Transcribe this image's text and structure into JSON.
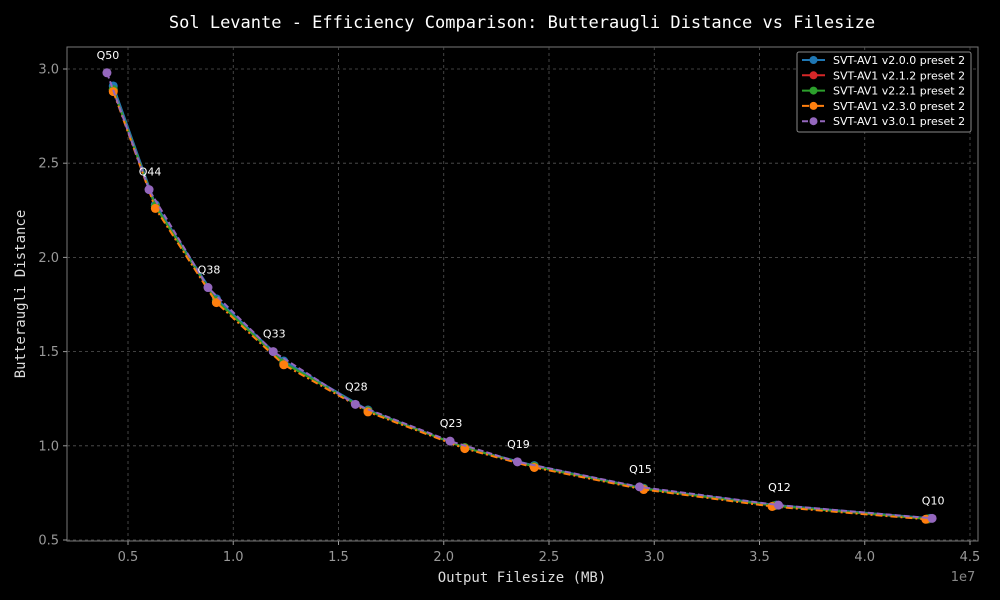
{
  "chart_data": {
    "type": "line",
    "title": "Sol Levante - Efficiency Comparison: Butteraugli Distance vs Filesize",
    "xlabel": "Output Filesize (MB)",
    "ylabel": "Butteraugli Distance",
    "x_offset_label": "1e7",
    "xlim": [
      0.0,
      4.5
    ],
    "ylim": [
      0.47,
      3.12
    ],
    "x_ticks": [
      0.5,
      1.0,
      1.5,
      2.0,
      2.5,
      3.0,
      3.5,
      4.0,
      4.5
    ],
    "x_tick_labels": [
      "0.5",
      "1.0",
      "1.5",
      "2.0",
      "2.5",
      "3.0",
      "3.5",
      "4.0",
      "4.5"
    ],
    "y_ticks": [
      0.5,
      1.0,
      1.5,
      2.0,
      2.5,
      3.0
    ],
    "y_tick_labels": [
      "0.5",
      "1.0",
      "1.5",
      "2.0",
      "2.5",
      "3.0"
    ],
    "grid": true,
    "legend_position": "top-right",
    "background": "#000000",
    "series": [
      {
        "name": "SVT-AV1 v2.0.0 preset 2",
        "color": "#1f77b4",
        "linestyle": "solid",
        "x": [
          0.43,
          0.63,
          0.92,
          1.24,
          1.64,
          2.1,
          2.43,
          2.95,
          3.58,
          4.31
        ],
        "y": [
          2.91,
          2.28,
          1.78,
          1.45,
          1.19,
          0.99,
          0.895,
          0.775,
          0.685,
          0.615
        ]
      },
      {
        "name": "SVT-AV1 v2.1.2 preset 2",
        "color": "#d62728",
        "linestyle": "solid",
        "x": [
          0.43,
          0.63,
          0.92,
          1.24,
          1.64,
          2.1,
          2.43,
          2.95,
          3.57,
          4.3
        ],
        "y": [
          2.89,
          2.27,
          1.77,
          1.44,
          1.185,
          0.99,
          0.89,
          0.772,
          0.682,
          0.612
        ]
      },
      {
        "name": "SVT-AV1 v2.2.1 preset 2",
        "color": "#2ca02c",
        "linestyle": "solid",
        "x": [
          0.43,
          0.63,
          0.92,
          1.24,
          1.64,
          2.1,
          2.43,
          2.95,
          3.57,
          4.3
        ],
        "y": [
          2.89,
          2.27,
          1.77,
          1.44,
          1.185,
          0.99,
          0.89,
          0.772,
          0.682,
          0.612
        ]
      },
      {
        "name": "SVT-AV1 v2.3.0 preset 2",
        "color": "#ff7f0e",
        "linestyle": "dashdot",
        "x": [
          0.43,
          0.63,
          0.92,
          1.24,
          1.64,
          2.1,
          2.43,
          2.95,
          3.56,
          4.29
        ],
        "y": [
          2.88,
          2.26,
          1.76,
          1.43,
          1.18,
          0.985,
          0.885,
          0.768,
          0.678,
          0.61
        ]
      },
      {
        "name": "SVT-AV1 v3.0.1 preset 2",
        "color": "#9467bd",
        "linestyle": "dashed",
        "x": [
          0.4,
          0.6,
          0.88,
          1.19,
          1.58,
          2.03,
          2.35,
          2.93,
          3.59,
          4.32
        ],
        "y": [
          2.98,
          2.36,
          1.84,
          1.5,
          1.22,
          1.025,
          0.915,
          0.782,
          0.685,
          0.615
        ]
      }
    ],
    "point_annotations": [
      {
        "text": "Q50",
        "x": 0.4,
        "y": 2.98
      },
      {
        "text": "Q44",
        "x": 0.6,
        "y": 2.36
      },
      {
        "text": "Q38",
        "x": 0.88,
        "y": 1.84
      },
      {
        "text": "Q33",
        "x": 1.19,
        "y": 1.5
      },
      {
        "text": "Q28",
        "x": 1.58,
        "y": 1.22
      },
      {
        "text": "Q23",
        "x": 2.03,
        "y": 1.025
      },
      {
        "text": "Q19",
        "x": 2.35,
        "y": 0.915
      },
      {
        "text": "Q15",
        "x": 2.93,
        "y": 0.782
      },
      {
        "text": "Q12",
        "x": 3.59,
        "y": 0.685
      },
      {
        "text": "Q10",
        "x": 4.32,
        "y": 0.615
      }
    ]
  }
}
